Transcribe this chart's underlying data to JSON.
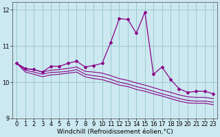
{
  "title": "",
  "xlabel": "Windchill (Refroidissement éolien,°C)",
  "bg_color": "#cce8f0",
  "line_color": "#880088",
  "grid_color": "#99cccc",
  "x_values": [
    0,
    1,
    2,
    3,
    4,
    5,
    6,
    7,
    8,
    9,
    10,
    11,
    12,
    13,
    14,
    15,
    16,
    17,
    18,
    19,
    20,
    21,
    22,
    23
  ],
  "main_line": [
    10.52,
    10.37,
    10.35,
    10.28,
    10.44,
    10.44,
    10.52,
    10.58,
    10.42,
    10.46,
    10.52,
    11.1,
    11.75,
    11.73,
    11.35,
    11.93,
    10.22,
    10.42,
    10.08,
    9.82,
    9.72,
    9.75,
    9.75,
    9.68
  ],
  "line2": [
    10.52,
    10.38,
    10.35,
    10.28,
    10.33,
    10.35,
    10.38,
    10.42,
    10.3,
    10.28,
    10.25,
    10.18,
    10.1,
    10.05,
    9.98,
    9.92,
    9.85,
    9.78,
    9.72,
    9.65,
    9.6,
    9.58,
    9.58,
    9.55
  ],
  "line3": [
    10.52,
    10.33,
    10.28,
    10.22,
    10.27,
    10.28,
    10.3,
    10.35,
    10.22,
    10.18,
    10.15,
    10.08,
    10.0,
    9.95,
    9.88,
    9.82,
    9.75,
    9.68,
    9.62,
    9.55,
    9.5,
    9.48,
    9.48,
    9.45
  ],
  "line4": [
    10.52,
    10.28,
    10.22,
    10.15,
    10.2,
    10.22,
    10.25,
    10.28,
    10.15,
    10.1,
    10.07,
    10.0,
    9.92,
    9.88,
    9.8,
    9.75,
    9.68,
    9.62,
    9.55,
    9.48,
    9.43,
    9.42,
    9.42,
    9.38
  ],
  "ylim": [
    9.0,
    12.2
  ],
  "xlim": [
    -0.5,
    23.5
  ],
  "yticks": [
    9,
    10,
    11,
    12
  ],
  "xticks": [
    0,
    1,
    2,
    3,
    4,
    5,
    6,
    7,
    8,
    9,
    10,
    11,
    12,
    13,
    14,
    15,
    16,
    17,
    18,
    19,
    20,
    21,
    22,
    23
  ],
  "tick_fontsize": 6,
  "xlabel_fontsize": 6.5
}
